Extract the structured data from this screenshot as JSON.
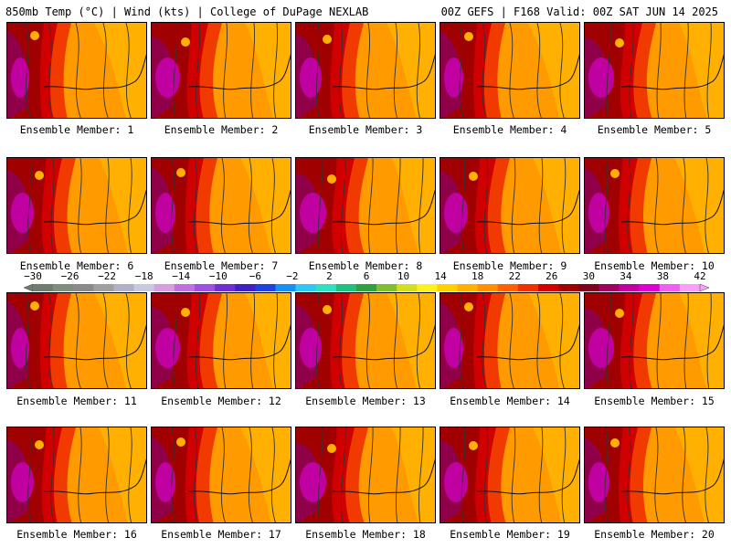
{
  "header": {
    "left_title": "850mb Temp (°C) | Wind (kts) | College of DuPage NEXLAB",
    "right_title": "00Z GEFS | F168 Valid: 00Z SAT JUN 14 2025"
  },
  "panels": [
    {
      "label": "Ensemble Member: 1"
    },
    {
      "label": "Ensemble Member: 2"
    },
    {
      "label": "Ensemble Member: 3"
    },
    {
      "label": "Ensemble Member: 4"
    },
    {
      "label": "Ensemble Member: 5"
    },
    {
      "label": "Ensemble Member: 6"
    },
    {
      "label": "Ensemble Member: 7"
    },
    {
      "label": "Ensemble Member: 8"
    },
    {
      "label": "Ensemble Member: 9"
    },
    {
      "label": "Ensemble Member: 10"
    },
    {
      "label": "Ensemble Member: 11"
    },
    {
      "label": "Ensemble Member: 12"
    },
    {
      "label": "Ensemble Member: 13"
    },
    {
      "label": "Ensemble Member: 14"
    },
    {
      "label": "Ensemble Member: 15"
    },
    {
      "label": "Ensemble Member: 16"
    },
    {
      "label": "Ensemble Member: 17"
    },
    {
      "label": "Ensemble Member: 18"
    },
    {
      "label": "Ensemble Member: 19"
    },
    {
      "label": "Ensemble Member: 20"
    }
  ],
  "colorbar": {
    "labels": [
      "−30",
      "−26",
      "−22",
      "−18",
      "−14",
      "−10",
      "−6",
      "−2",
      "2",
      "6",
      "10",
      "14",
      "18",
      "22",
      "26",
      "30",
      "34",
      "38",
      "42"
    ],
    "colors": [
      "#6e7d70",
      "#7f8c80",
      "#8a8a8a",
      "#a0a0a0",
      "#b0b0c8",
      "#c8c8e0",
      "#d89ee0",
      "#c070e0",
      "#a050e0",
      "#7030d0",
      "#4020c0",
      "#2040e0",
      "#1890f0",
      "#30c8f0",
      "#30e0c0",
      "#20c080",
      "#30a040",
      "#80c030",
      "#d0e020",
      "#fff020",
      "#ffd000",
      "#ffb000",
      "#ff9000",
      "#ff6000",
      "#f03000",
      "#d00000",
      "#a00000",
      "#800020",
      "#a00060",
      "#c000a0",
      "#e000d0",
      "#f060f0",
      "#f8a0f8"
    ]
  }
}
